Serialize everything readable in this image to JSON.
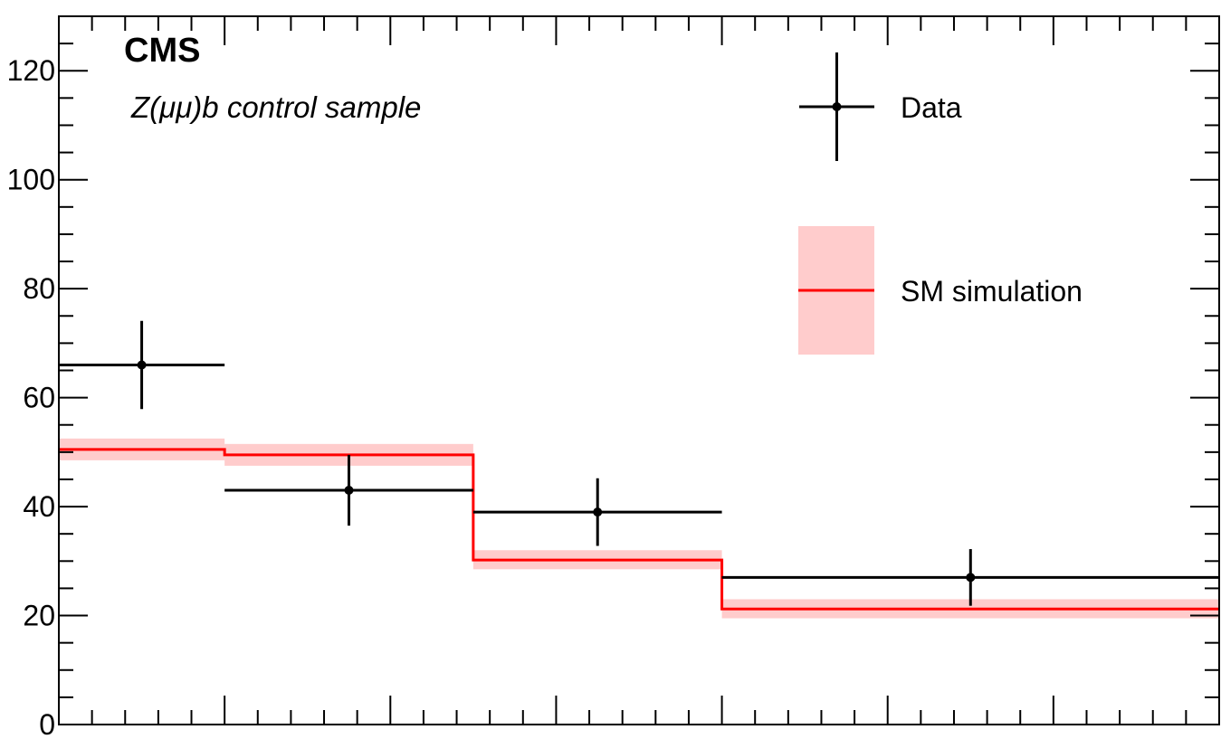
{
  "chart_data": {
    "type": "histogram",
    "experiment_label": "CMS",
    "sample_label": "Z(μμ)b control sample",
    "bin_edges": [
      0,
      1,
      2.5,
      4,
      7
    ],
    "ylim": [
      0,
      130
    ],
    "yticks": [
      "0",
      "20",
      "40",
      "60",
      "80",
      "100",
      "120"
    ],
    "series": [
      {
        "name": "Data",
        "kind": "points-with-errors",
        "color": "#000000",
        "x": [
          0.5,
          1.75,
          3.25,
          5.5
        ],
        "values": [
          66,
          43,
          39,
          27
        ],
        "y_err": [
          8.1,
          6.5,
          6.2,
          5.2
        ]
      },
      {
        "name": "SM simulation",
        "kind": "step-with-band",
        "color": "#ff0000",
        "band_color": "#ffcccc",
        "values": [
          50.5,
          49.5,
          30.2,
          21.2
        ],
        "band": [
          [
            48.5,
            52.5
          ],
          [
            47.5,
            51.5
          ],
          [
            28.5,
            32.0
          ],
          [
            19.5,
            23.0
          ]
        ]
      }
    ],
    "legend_position": "top-right"
  }
}
